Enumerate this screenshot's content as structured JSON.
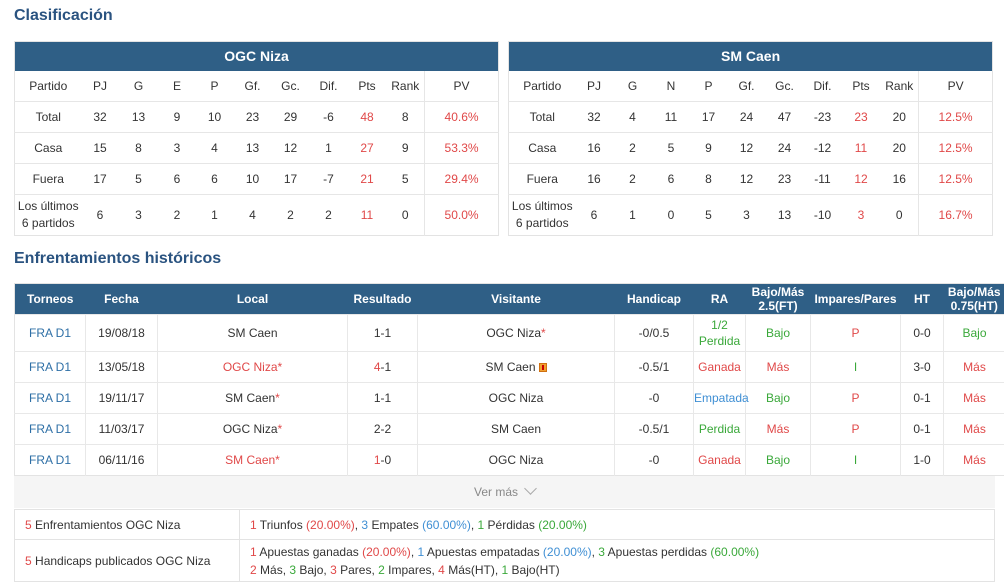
{
  "titles": {
    "standings": "Clasificación",
    "h2h": "Enfrentamientos históricos"
  },
  "colors": {
    "header_bg": "#2f5f86",
    "title": "#2a5380",
    "red": "#e04848",
    "green": "#3aa83a",
    "blue": "#3f8fd4"
  },
  "standings": {
    "home": {
      "team": "OGC Niza",
      "columns": [
        "Partido",
        "PJ",
        "G",
        "E",
        "P",
        "Gf.",
        "Gc.",
        "Dif.",
        "Pts",
        "Rank",
        "PV"
      ],
      "rows": [
        {
          "label": "Total",
          "pj": "32",
          "g": "13",
          "e": "9",
          "p": "10",
          "gf": "23",
          "gc": "29",
          "dif": "-6",
          "pts": "48",
          "rank": "8",
          "pv": "40.6%"
        },
        {
          "label": "Casa",
          "pj": "15",
          "g": "8",
          "e": "3",
          "p": "4",
          "gf": "13",
          "gc": "12",
          "dif": "1",
          "pts": "27",
          "rank": "9",
          "pv": "53.3%"
        },
        {
          "label": "Fuera",
          "pj": "17",
          "g": "5",
          "e": "6",
          "p": "6",
          "gf": "10",
          "gc": "17",
          "dif": "-7",
          "pts": "21",
          "rank": "5",
          "pv": "29.4%"
        },
        {
          "label_a": "Los últimos",
          "label_b": "6 partidos",
          "pj": "6",
          "g": "3",
          "e": "2",
          "p": "1",
          "gf": "4",
          "gc": "2",
          "dif": "2",
          "pts": "11",
          "rank": "0",
          "pv": "50.0%"
        }
      ]
    },
    "away": {
      "team": "SM Caen",
      "columns": [
        "Partido",
        "PJ",
        "G",
        "N",
        "P",
        "Gf.",
        "Gc.",
        "Dif.",
        "Pts",
        "Rank",
        "PV"
      ],
      "rows": [
        {
          "label": "Total",
          "pj": "32",
          "g": "4",
          "e": "11",
          "p": "17",
          "gf": "24",
          "gc": "47",
          "dif": "-23",
          "pts": "23",
          "rank": "20",
          "pv": "12.5%"
        },
        {
          "label": "Casa",
          "pj": "16",
          "g": "2",
          "e": "5",
          "p": "9",
          "gf": "12",
          "gc": "24",
          "dif": "-12",
          "pts": "11",
          "rank": "20",
          "pv": "12.5%"
        },
        {
          "label": "Fuera",
          "pj": "16",
          "g": "2",
          "e": "6",
          "p": "8",
          "gf": "12",
          "gc": "23",
          "dif": "-11",
          "pts": "12",
          "rank": "16",
          "pv": "12.5%"
        },
        {
          "label_a": "Los últimos",
          "label_b": "6 partidos",
          "pj": "6",
          "g": "1",
          "e": "0",
          "p": "5",
          "gf": "3",
          "gc": "13",
          "dif": "-10",
          "pts": "3",
          "rank": "0",
          "pv": "16.7%"
        }
      ]
    }
  },
  "h2h": {
    "headers": {
      "torneos": "Torneos",
      "fecha": "Fecha",
      "local": "Local",
      "resultado": "Resultado",
      "visitante": "Visitante",
      "handicap": "Handicap",
      "ra": "RA",
      "bm_a": "Bajo/Más",
      "bm_b": "2.5(FT)",
      "ip": "Impares/Pares",
      "ht": "HT",
      "bm2_a": "Bajo/Más",
      "bm2_b": "0.75(HT)"
    },
    "rows": [
      {
        "torneo": "FRA D1",
        "fecha": "19/08/18",
        "local": "SM Caen",
        "local_star": "",
        "res_a": "1",
        "res_b": "-1",
        "visitante": "OGC Niza",
        "vis_star": "*",
        "handicap": "-0/0.5",
        "ra_a": "1/2",
        "ra_b": "Perdida",
        "bm": "Bajo",
        "ip": "P",
        "ht": "0-0",
        "bm2": "Bajo"
      },
      {
        "torneo": "FRA D1",
        "fecha": "13/05/18",
        "local": "OGC Niza",
        "local_star": "*",
        "res_a": "4",
        "res_b": "-1",
        "visitante": "SM Caen",
        "vis_star": "",
        "handicap": "-0.5/1",
        "ra": "Ganada",
        "bm": "Más",
        "ip": "I",
        "ht": "3-0",
        "bm2": "Más"
      },
      {
        "torneo": "FRA D1",
        "fecha": "19/11/17",
        "local": "SM Caen",
        "local_star": "*",
        "res_a": "1",
        "res_b": "-1",
        "visitante": "OGC Niza",
        "vis_star": "",
        "handicap": "-0",
        "ra": "Empatada",
        "bm": "Bajo",
        "ip": "P",
        "ht": "0-1",
        "bm2": "Más"
      },
      {
        "torneo": "FRA D1",
        "fecha": "11/03/17",
        "local": "OGC Niza",
        "local_star": "*",
        "res_a": "2",
        "res_b": "-2",
        "visitante": "SM Caen",
        "vis_star": "",
        "handicap": "-0.5/1",
        "ra": "Perdida",
        "bm": "Más",
        "ip": "P",
        "ht": "0-1",
        "bm2": "Más"
      },
      {
        "torneo": "FRA D1",
        "fecha": "06/11/16",
        "local": "SM Caen",
        "local_star": "*",
        "res_a": "1",
        "res_b": "-0",
        "visitante": "OGC Niza",
        "vis_star": "",
        "handicap": "-0",
        "ra": "Ganada",
        "bm": "Bajo",
        "ip": "I",
        "ht": "1-0",
        "bm2": "Más"
      }
    ]
  },
  "more": {
    "label": "Ver más"
  },
  "summary": {
    "row1": {
      "count": "5",
      "label": " Enfrentamientos OGC Niza",
      "w": "1",
      "w_t": " Triunfos ",
      "w_p": "(20.00%)",
      "d": "3",
      "d_t": " Empates ",
      "d_p": "(60.00%)",
      "l": "1",
      "l_t": " Pérdidas ",
      "l_p": "(20.00%)"
    },
    "row2": {
      "count": "5",
      "label": " Handicaps publicados OGC Niza",
      "w": "1",
      "w_t": " Apuestas ganadas ",
      "w_p": "(20.00%)",
      "d": "1",
      "d_t": " Apuestas empatadas ",
      "d_p": "(20.00%)",
      "l": "3",
      "l_t": " Apuestas perdidas ",
      "l_p": "(60.00%)",
      "mas": "2",
      "mas_t": " Más, ",
      "bajo": "3",
      "bajo_t": " Bajo, ",
      "pares": "3",
      "pares_t": " Pares, ",
      "impares": "2",
      "impares_t": " Impares, ",
      "masht": "4",
      "masht_t": " Más(HT), ",
      "bajoht": "1",
      "bajoht_t": " Bajo(HT)"
    }
  }
}
